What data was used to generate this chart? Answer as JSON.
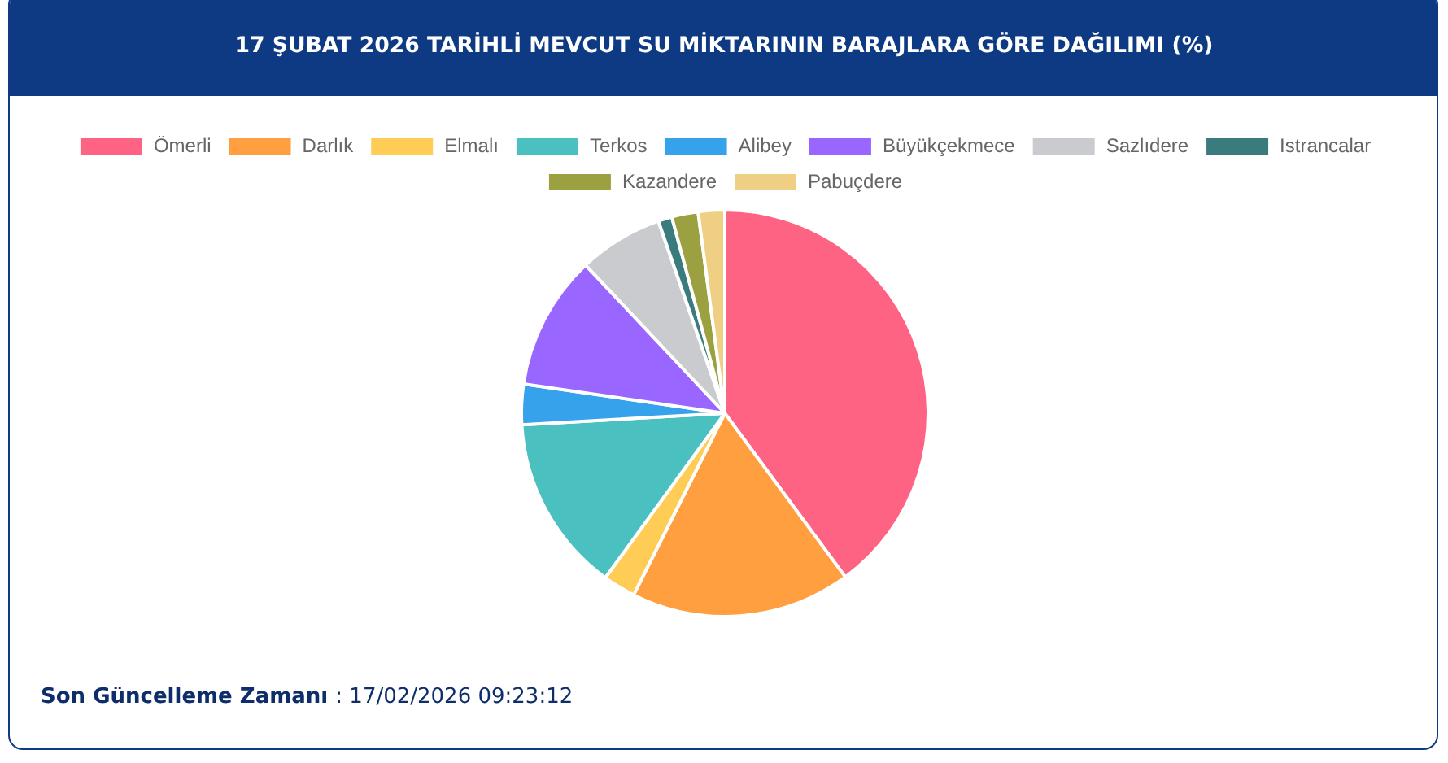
{
  "chart_data": {
    "type": "pie",
    "title": "17 ŞUBAT 2026 TARİHLİ MEVCUT SU MİKTARININ BARAJLARA GÖRE DAĞILIMI (%)",
    "categories": [
      "Ömerli",
      "Darlık",
      "Elmalı",
      "Terkos",
      "Alibey",
      "Büyükçekmece",
      "Sazlıdere",
      "Istrancalar",
      "Kazandere",
      "Pabuçdere"
    ],
    "values": [
      39.9,
      17.5,
      2.6,
      14.1,
      3.2,
      10.7,
      6.7,
      1.1,
      2.1,
      2.1
    ],
    "colors": [
      "#ff6384",
      "#ff9f40",
      "#ffcd56",
      "#4bc0c0",
      "#36a2eb",
      "#9966ff",
      "#c9cbcf",
      "#3a7b7e",
      "#9ba140",
      "#eecf83"
    ],
    "legend": "top",
    "annotations": [
      "Son Güncelleme Zamanı : 17/02/2026 09:23:12"
    ]
  }
}
